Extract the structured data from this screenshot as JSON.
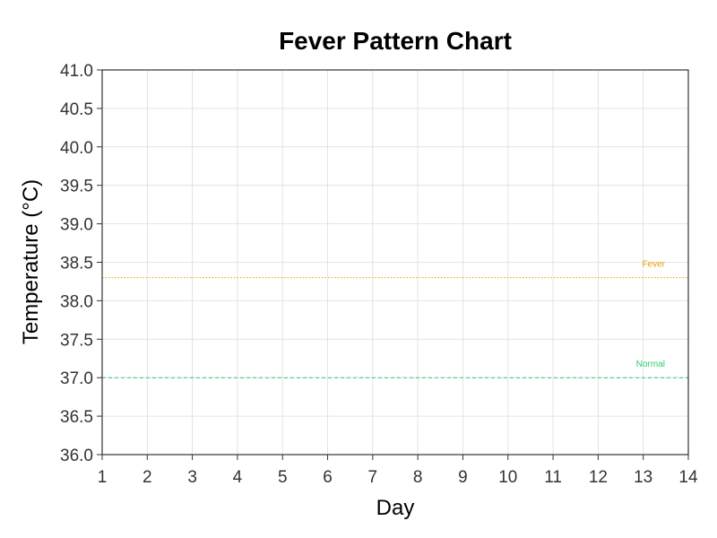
{
  "chart_data": {
    "type": "line",
    "title": "Fever Pattern Chart",
    "xlabel": "Day",
    "ylabel": "Temperature (°C)",
    "xlim": [
      1,
      14
    ],
    "ylim": [
      36.0,
      41.0
    ],
    "x_ticks": [
      1,
      2,
      3,
      4,
      5,
      6,
      7,
      8,
      9,
      10,
      11,
      12,
      13,
      14
    ],
    "y_ticks": [
      "36.0",
      "36.5",
      "37.0",
      "37.5",
      "38.0",
      "38.5",
      "39.0",
      "39.5",
      "40.0",
      "40.5",
      "41.0"
    ],
    "grid": true,
    "series": [],
    "reference_lines": [
      {
        "label": "Fever",
        "y": 38.3,
        "color": "#E69F00",
        "style": "dotted"
      },
      {
        "label": "Normal",
        "y": 37.0,
        "color": "#2ECC71",
        "style": "dashed"
      }
    ]
  }
}
